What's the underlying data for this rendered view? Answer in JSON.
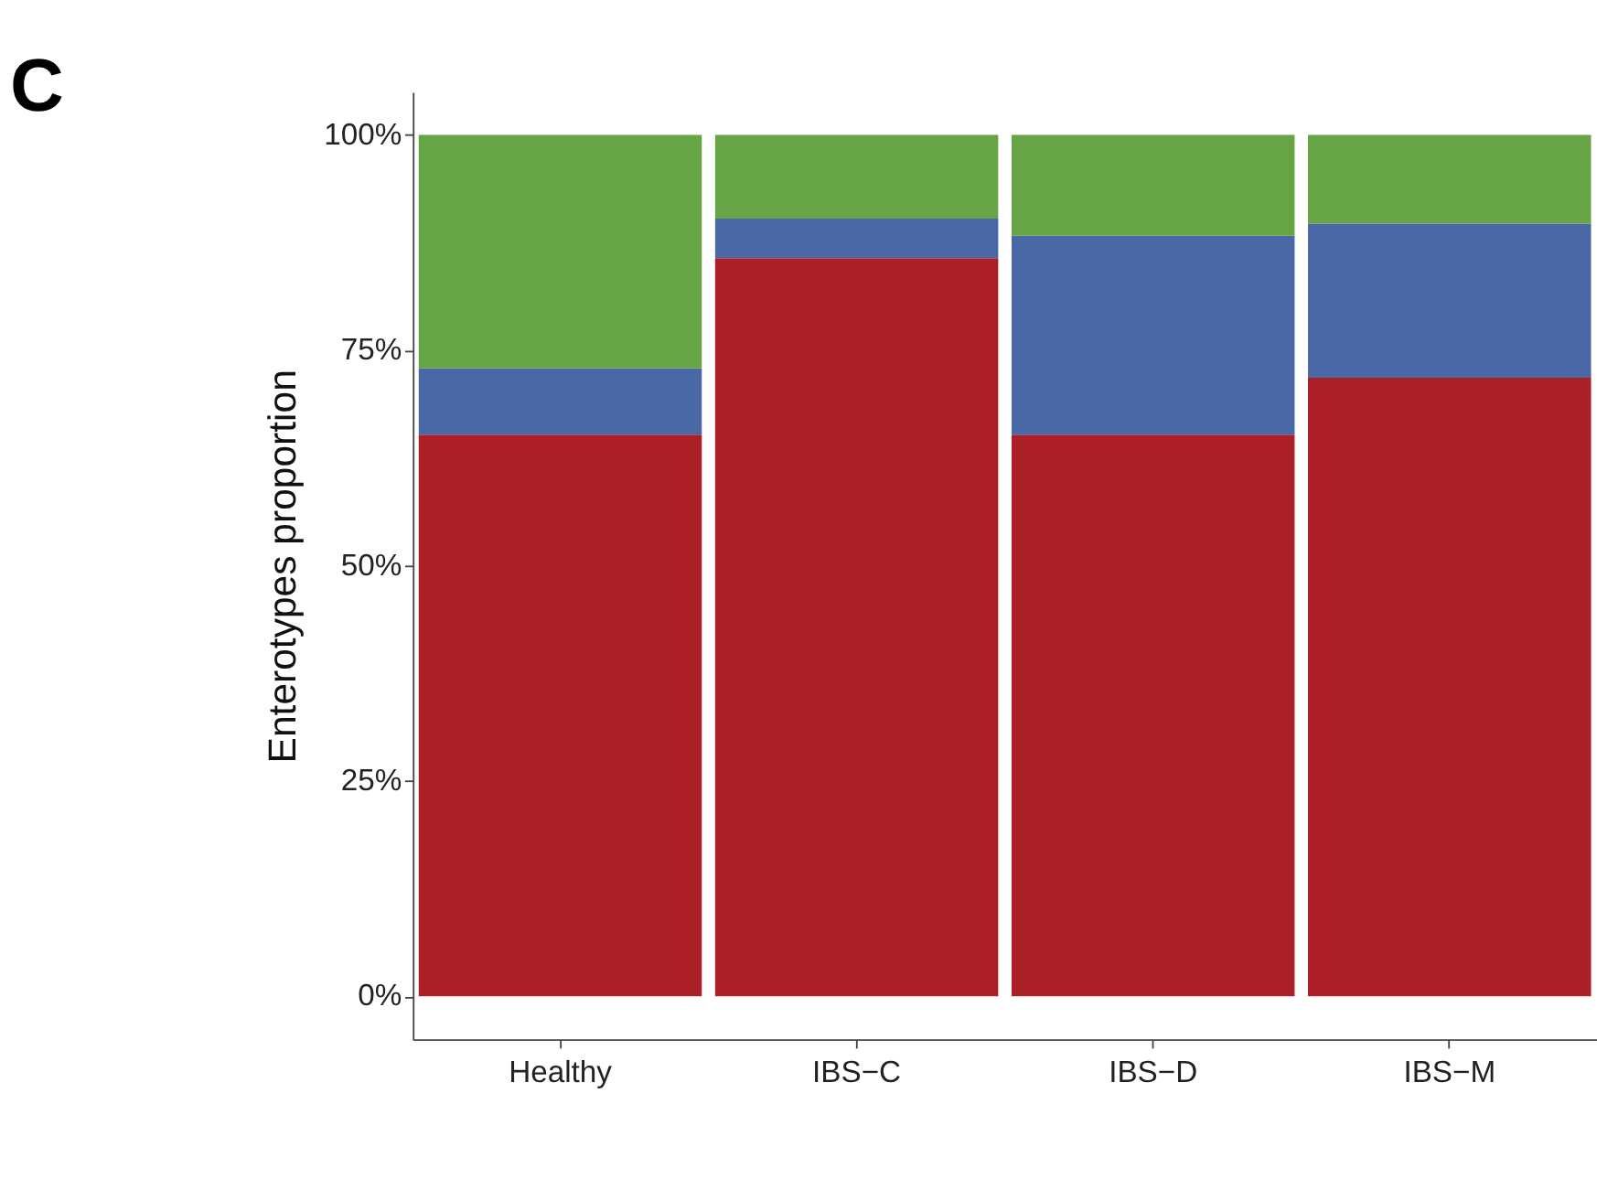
{
  "chart_data": {
    "type": "bar",
    "title": "C",
    "ylabel": "Enterotypes proportion",
    "stacked": true,
    "categories": [
      "Healthy",
      "IBS−C",
      "IBS−D",
      "IBS−M"
    ],
    "series": [
      {
        "color": "#ab1f26",
        "values": [
          65.2,
          85.7,
          65.2,
          71.8
        ]
      },
      {
        "color": "#4a67a6",
        "values": [
          7.7,
          4.6,
          23.1,
          17.9
        ]
      },
      {
        "color": "#67a446",
        "values": [
          27.1,
          9.7,
          11.7,
          10.3
        ]
      }
    ],
    "ylim": [
      -5,
      105
    ],
    "yticks": [
      {
        "value": 0,
        "label": "0%"
      },
      {
        "value": 25,
        "label": "25%"
      },
      {
        "value": 50,
        "label": "50%"
      },
      {
        "value": 75,
        "label": "75%"
      },
      {
        "value": 100,
        "label": "100%"
      }
    ],
    "grid": false,
    "legend": false
  }
}
